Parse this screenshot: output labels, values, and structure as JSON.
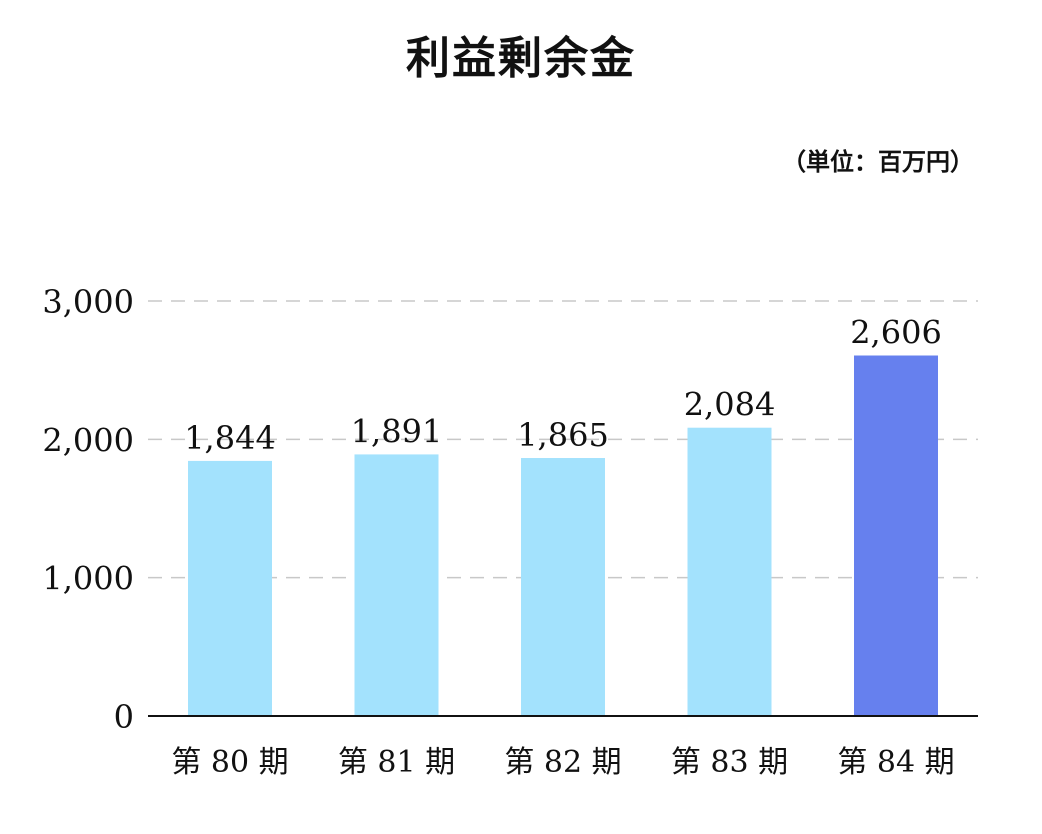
{
  "chart_data": {
    "type": "bar",
    "title": "利益剰余金",
    "unit": "（単位：百万円）",
    "categories": [
      "第 80 期",
      "第 81 期",
      "第 82 期",
      "第 83 期",
      "第 84 期"
    ],
    "values": [
      1844,
      1891,
      1865,
      2084,
      2606
    ],
    "value_labels": [
      "1,844",
      "1,891",
      "1,865",
      "2,084",
      "2,606"
    ],
    "yticks": [
      0,
      1000,
      2000,
      3000
    ],
    "ytick_labels": [
      "0",
      "1,000",
      "2,000",
      "3,000"
    ],
    "ylim": [
      0,
      3000
    ],
    "grid": true,
    "colors": {
      "bar": "#a3e2fd",
      "highlight": "#6680ee",
      "grid": "#c8c8c8",
      "axis": "#111111"
    },
    "highlight_index": 4
  }
}
